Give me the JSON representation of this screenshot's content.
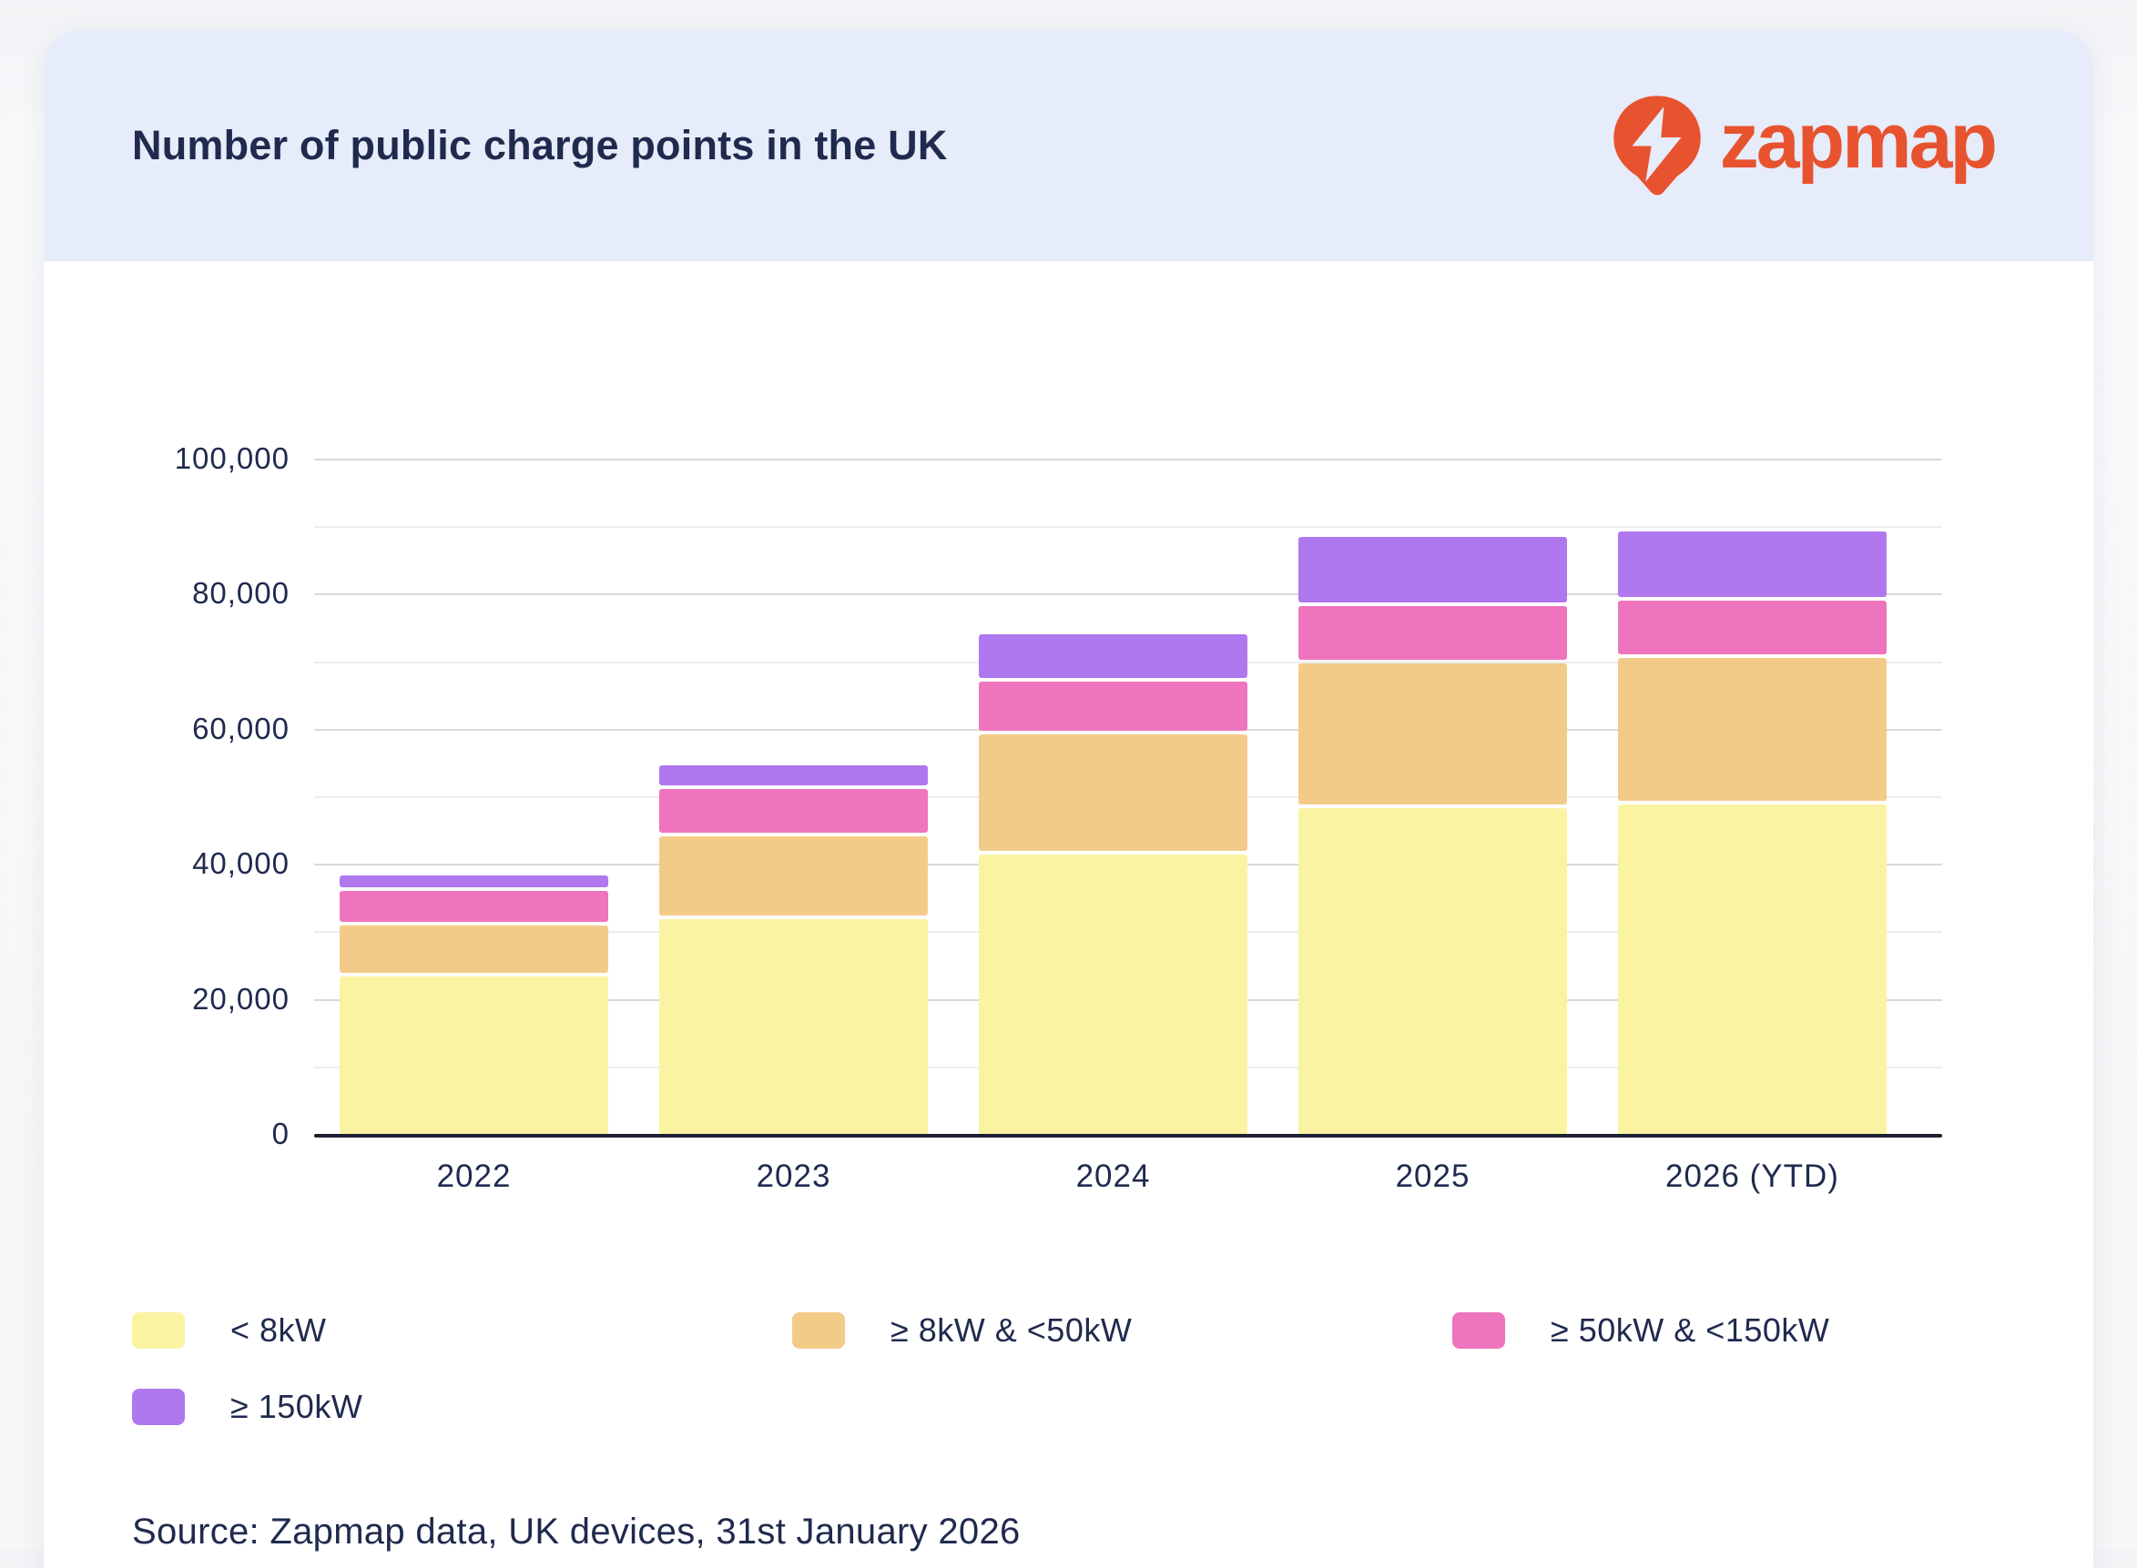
{
  "header": {
    "logo_text": "zapmap"
  },
  "source": "Source: Zapmap data, UK devices, 31st January 2026",
  "colors": {
    "brand_orange": "#E8532F",
    "header_bg": "#E6ECF9",
    "navy": "#1F2A4E",
    "axis": "#1C2032"
  },
  "chart_data": {
    "type": "bar",
    "stacked": true,
    "title": "Number of public charge points in the UK",
    "categories": [
      "2022",
      "2023",
      "2024",
      "2025",
      "2026 (YTD)"
    ],
    "series": [
      {
        "name": "< 8kW",
        "color": "#FAF3A2",
        "values": [
          23400,
          32000,
          41500,
          48400,
          48900
        ]
      },
      {
        "name": "≥ 8kW & <50kW",
        "color": "#F3CB89",
        "values": [
          7000,
          11700,
          17300,
          20900,
          21100
        ]
      },
      {
        "name": "≥ 50kW & <150kW",
        "color": "#EE74BD",
        "values": [
          4600,
          6500,
          7300,
          8000,
          7900
        ]
      },
      {
        "name": "≥ 150kW",
        "color": "#AF78EF",
        "values": [
          1800,
          3000,
          6500,
          9700,
          9700
        ]
      }
    ],
    "totals_estimated": [
      36800,
      53200,
      72600,
      87000,
      87600
    ],
    "ylim": [
      0,
      100000
    ],
    "ytick_step": 10000,
    "ylabel_step": 20000,
    "ytick_labels": [
      "0",
      "20,000",
      "40,000",
      "60,000",
      "80,000",
      "100,000"
    ],
    "grid": true,
    "legend_position": "bottom"
  }
}
